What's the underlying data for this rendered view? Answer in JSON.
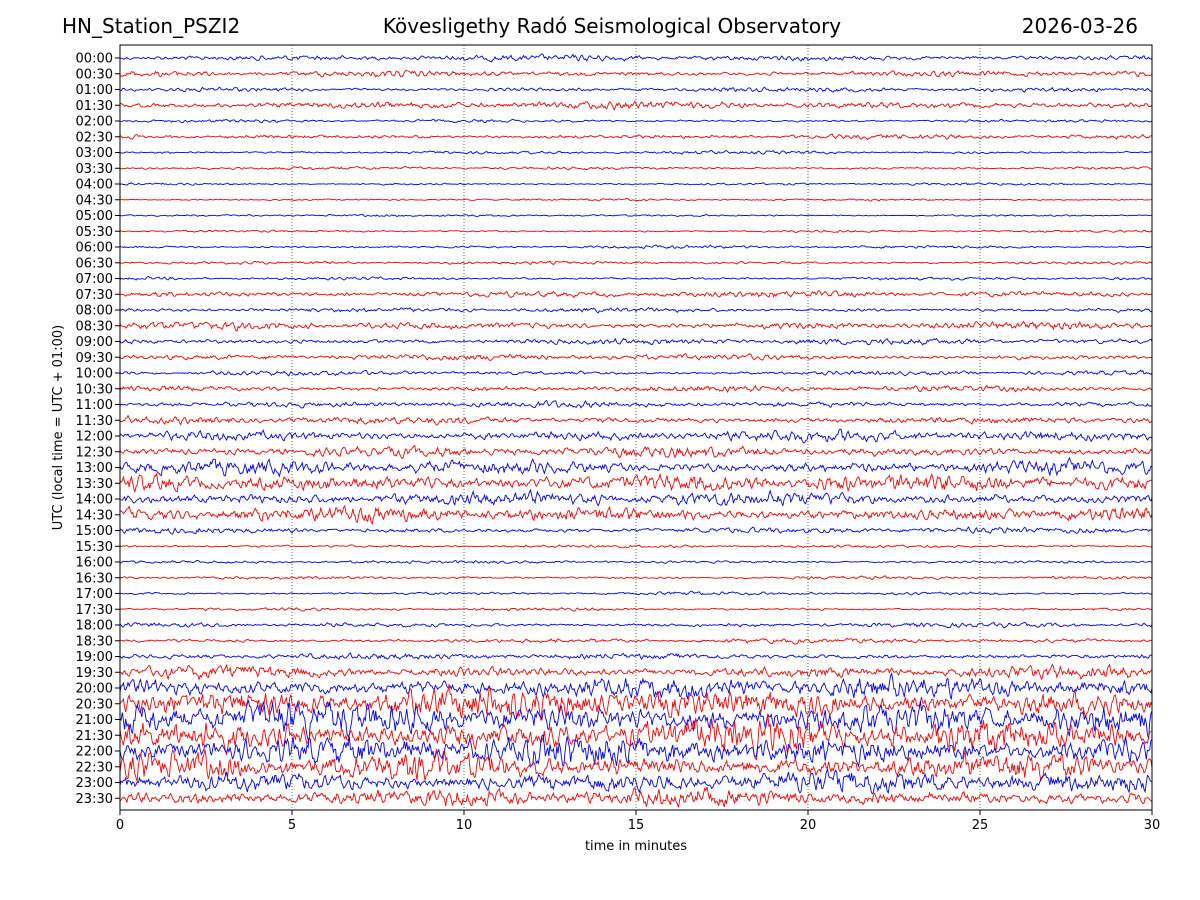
{
  "header": {
    "station": "HN_Station_PSZI2",
    "observatory": "Kövesligethy Radó Seismological Observatory",
    "date": "2026-03-26"
  },
  "chart_data": {
    "type": "line",
    "title": "Kövesligethy Radó Seismological Observatory",
    "xlabel": "time in minutes",
    "ylabel": "UTC (local time = UTC + 01:00)",
    "xlim": [
      0,
      30
    ],
    "xticks": [
      "0",
      "5",
      "10",
      "15",
      "20",
      "25",
      "30"
    ],
    "grid_x": true,
    "trace_colors": [
      "#0000ff",
      "#ff0000"
    ],
    "rows": [
      {
        "label": "00:00",
        "amp": 4
      },
      {
        "label": "00:30",
        "amp": 4
      },
      {
        "label": "01:00",
        "amp": 3
      },
      {
        "label": "01:30",
        "amp": 5
      },
      {
        "label": "02:00",
        "amp": 2
      },
      {
        "label": "02:30",
        "amp": 3
      },
      {
        "label": "03:00",
        "amp": 2
      },
      {
        "label": "03:30",
        "amp": 2
      },
      {
        "label": "04:00",
        "amp": 1.5
      },
      {
        "label": "04:30",
        "amp": 1.5
      },
      {
        "label": "05:00",
        "amp": 1.5
      },
      {
        "label": "05:30",
        "amp": 1.5
      },
      {
        "label": "06:00",
        "amp": 2
      },
      {
        "label": "06:30",
        "amp": 2
      },
      {
        "label": "07:00",
        "amp": 2
      },
      {
        "label": "07:30",
        "amp": 4
      },
      {
        "label": "08:00",
        "amp": 3
      },
      {
        "label": "08:30",
        "amp": 5
      },
      {
        "label": "09:00",
        "amp": 4
      },
      {
        "label": "09:30",
        "amp": 4
      },
      {
        "label": "10:00",
        "amp": 3
      },
      {
        "label": "10:30",
        "amp": 4
      },
      {
        "label": "11:00",
        "amp": 4
      },
      {
        "label": "11:30",
        "amp": 5
      },
      {
        "label": "12:00",
        "amp": 7
      },
      {
        "label": "12:30",
        "amp": 7
      },
      {
        "label": "13:00",
        "amp": 9
      },
      {
        "label": "13:30",
        "amp": 12
      },
      {
        "label": "14:00",
        "amp": 9
      },
      {
        "label": "14:30",
        "amp": 10
      },
      {
        "label": "15:00",
        "amp": 4
      },
      {
        "label": "15:30",
        "amp": 2
      },
      {
        "label": "16:00",
        "amp": 2
      },
      {
        "label": "16:30",
        "amp": 2
      },
      {
        "label": "17:00",
        "amp": 2
      },
      {
        "label": "17:30",
        "amp": 2
      },
      {
        "label": "18:00",
        "amp": 3
      },
      {
        "label": "18:30",
        "amp": 3
      },
      {
        "label": "19:00",
        "amp": 4
      },
      {
        "label": "19:30",
        "amp": 8
      },
      {
        "label": "20:00",
        "amp": 14
      },
      {
        "label": "20:30",
        "amp": 20
      },
      {
        "label": "21:00",
        "amp": 22
      },
      {
        "label": "21:30",
        "amp": 22
      },
      {
        "label": "22:00",
        "amp": 20
      },
      {
        "label": "22:30",
        "amp": 18
      },
      {
        "label": "23:00",
        "amp": 14
      },
      {
        "label": "23:30",
        "amp": 12
      }
    ]
  }
}
